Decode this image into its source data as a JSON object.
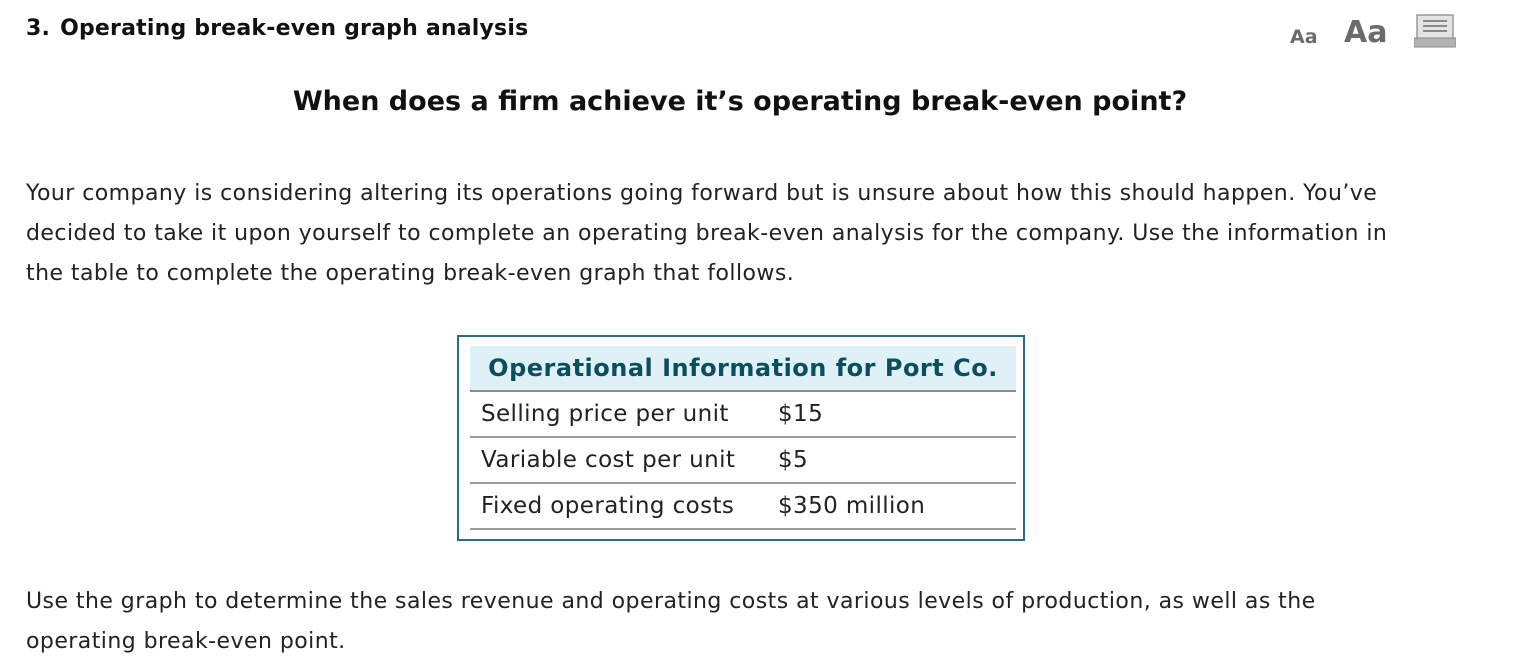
{
  "question": {
    "number": "3.",
    "title": "Operating break-even graph analysis"
  },
  "toolbar": {
    "font_small_label": "Aa",
    "font_large_label": "Aa",
    "print_icon": "print-icon"
  },
  "subtitle": "When does a firm achieve it’s operating break-even point?",
  "intro_paragraph": "Your company is considering altering its operations going forward but is unsure about how this should happen. You’ve decided to take it upon yourself to complete an operating break-even analysis for the company. Use the information in the table to complete the operating break-even graph that follows.",
  "info_table": {
    "title": "Operational Information for Port Co.",
    "rows": [
      {
        "label": "Selling price per unit",
        "value": "$15"
      },
      {
        "label": "Variable cost per unit",
        "value": "$5"
      },
      {
        "label": "Fixed operating costs",
        "value": "$350 million"
      }
    ]
  },
  "closing_paragraph": "Use the graph to determine the sales revenue and operating costs at various levels of production, as well as the operating break-even point.",
  "colors": {
    "table_header_bg": "#dff0f7",
    "table_header_text": "#0b4f5c",
    "table_border": "#2a6f7f",
    "toolbar_gray": "#6b6b6b"
  }
}
